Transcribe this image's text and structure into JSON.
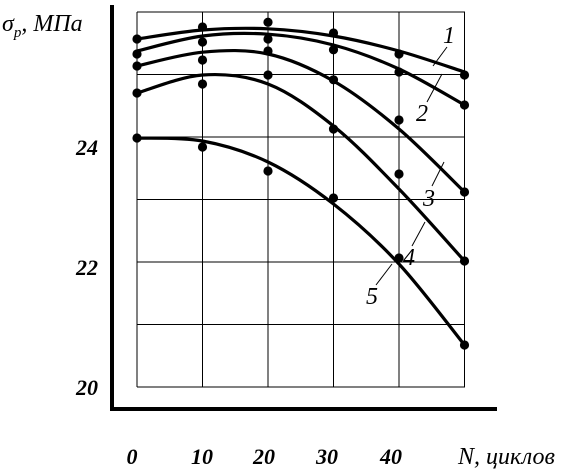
{
  "chart_data": {
    "type": "scatter",
    "ylabel": "σр, МПа",
    "xlabel": "N, циклов",
    "y_label_symbol": "σ",
    "y_label_sub": "р",
    "y_label_unit": ", МПа",
    "x_ticks": [
      "0",
      "10",
      "20",
      "30",
      "40"
    ],
    "y_ticks": [
      "20",
      "22",
      "24"
    ],
    "xlim": [
      0,
      50
    ],
    "ylim": [
      20,
      26.3
    ],
    "grid": true,
    "series": [
      {
        "name": "1",
        "curve": [
          [
            0,
            25.8
          ],
          [
            10,
            25.95
          ],
          [
            20,
            25.97
          ],
          [
            30,
            25.85
          ],
          [
            40,
            25.6
          ],
          [
            50,
            25.25
          ]
        ],
        "points": [
          [
            0,
            25.8
          ],
          [
            10,
            26.0
          ],
          [
            20,
            26.08
          ],
          [
            30,
            25.9
          ],
          [
            40,
            25.55
          ],
          [
            50,
            25.2
          ]
        ]
      },
      {
        "name": "2",
        "curve": [
          [
            0,
            25.6
          ],
          [
            10,
            25.85
          ],
          [
            20,
            25.88
          ],
          [
            30,
            25.7
          ],
          [
            40,
            25.3
          ],
          [
            50,
            24.7
          ]
        ],
        "points": [
          [
            0,
            25.55
          ],
          [
            10,
            25.75
          ],
          [
            20,
            25.8
          ],
          [
            30,
            25.62
          ],
          [
            40,
            25.25
          ],
          [
            50,
            24.7
          ]
        ]
      },
      {
        "name": "3",
        "curve": [
          [
            0,
            25.35
          ],
          [
            10,
            25.58
          ],
          [
            20,
            25.55
          ],
          [
            30,
            25.1
          ],
          [
            40,
            24.3
          ],
          [
            50,
            23.25
          ]
        ],
        "points": [
          [
            0,
            25.35
          ],
          [
            10,
            25.45
          ],
          [
            20,
            25.6
          ],
          [
            30,
            25.12
          ],
          [
            40,
            24.45
          ],
          [
            50,
            23.25
          ]
        ]
      },
      {
        "name": "4",
        "curve": [
          [
            0,
            24.9
          ],
          [
            10,
            25.2
          ],
          [
            20,
            25.05
          ],
          [
            30,
            24.35
          ],
          [
            40,
            23.3
          ],
          [
            50,
            22.1
          ]
        ],
        "points": [
          [
            0,
            24.9
          ],
          [
            10,
            25.05
          ],
          [
            20,
            25.2
          ],
          [
            30,
            24.3
          ],
          [
            40,
            23.55
          ],
          [
            50,
            22.1
          ]
        ]
      },
      {
        "name": "5",
        "curve": [
          [
            0,
            24.15
          ],
          [
            10,
            24.1
          ],
          [
            20,
            23.75
          ],
          [
            30,
            23.05
          ],
          [
            40,
            22.05
          ],
          [
            50,
            20.7
          ]
        ],
        "points": [
          [
            0,
            24.15
          ],
          [
            10,
            24.0
          ],
          [
            20,
            23.6
          ],
          [
            30,
            23.15
          ],
          [
            40,
            22.15
          ],
          [
            50,
            20.7
          ]
        ]
      }
    ]
  }
}
